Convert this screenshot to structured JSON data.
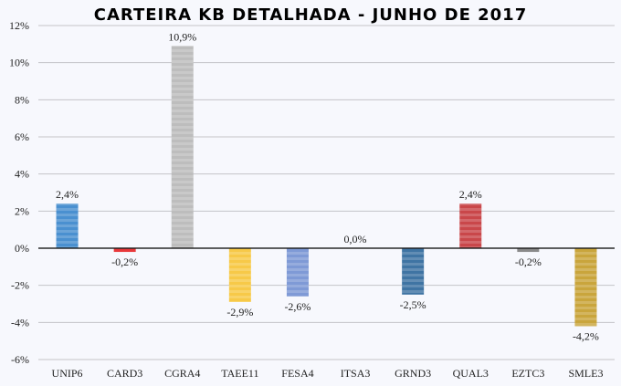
{
  "chart_data": {
    "type": "bar",
    "title": "CARTEIRA KB DETALHADA - JUNHO DE 2017",
    "categories": [
      "UNIP6",
      "CARD3",
      "CGRA4",
      "TAEE11",
      "FESA4",
      "ITSA3",
      "GRND3",
      "QUAL3",
      "EZTC3",
      "SMLE3"
    ],
    "values": [
      2.4,
      -0.2,
      10.9,
      -2.9,
      -2.6,
      0.0,
      -2.5,
      2.4,
      -0.2,
      -4.2
    ],
    "data_labels": [
      "2,4%",
      "-0,2%",
      "10,9%",
      "-2,9%",
      "-2,6%",
      "0,0%",
      "-2,5%",
      "2,4%",
      "-0,2%",
      "-4,2%"
    ],
    "colors": [
      "#4a90d0",
      "#e8383a",
      "#bdbdbd",
      "#f7c948",
      "#7f9ad6",
      "#999999",
      "#3f74a3",
      "#c9474a",
      "#8a8a8a",
      "#c9a53c"
    ],
    "ylim": [
      -6,
      12
    ],
    "yticks": [
      -6,
      -4,
      -2,
      0,
      2,
      4,
      6,
      8,
      10,
      12
    ],
    "ytick_labels": [
      "-6%",
      "-4%",
      "-2%",
      "0%",
      "2%",
      "4%",
      "6%",
      "8%",
      "10%",
      "12%"
    ],
    "xlabel": "",
    "ylabel": "",
    "grid": true,
    "legend": "none"
  }
}
